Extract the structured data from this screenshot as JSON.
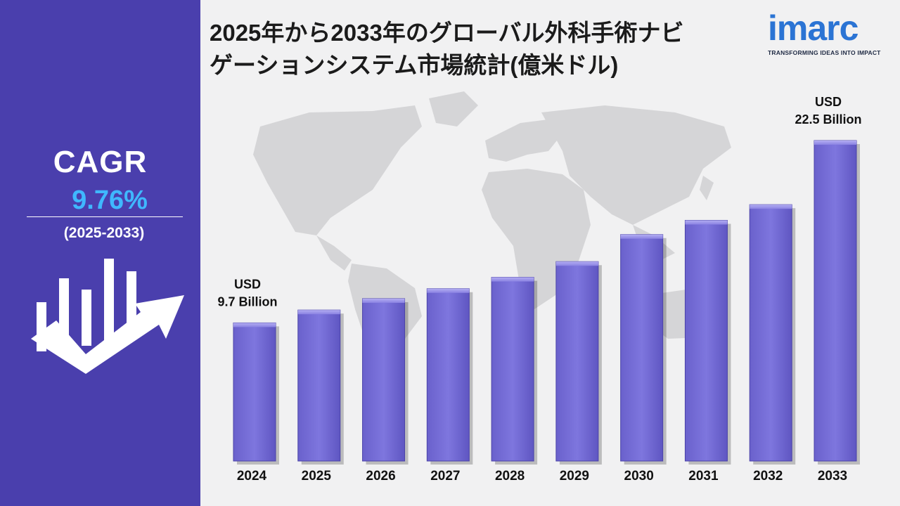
{
  "header": {
    "title_line1": "2025年から2033年のグローバル外科手術ナビ",
    "title_line2": "ゲーションシステム市場統計(億米ドル)"
  },
  "logo": {
    "word": "imarc",
    "tagline": "TRANSFORMING IDEAS INTO IMPACT",
    "color": "#2b74d4"
  },
  "sidebar": {
    "cagr_label": "CAGR",
    "cagr_value": "9.76%",
    "period": "(2025-2033)",
    "background": "#4a3fad",
    "accent": "#3fb8ff",
    "icon": "growth-chart-arrow-icon"
  },
  "chart_data": {
    "type": "bar",
    "categories": [
      "2024",
      "2025",
      "2026",
      "2027",
      "2028",
      "2029",
      "2030",
      "2031",
      "2032",
      "2033"
    ],
    "values": [
      9.7,
      10.6,
      11.4,
      12.1,
      12.9,
      14.0,
      15.9,
      16.9,
      18.0,
      22.5
    ],
    "ylim": [
      0,
      25
    ],
    "grid": false,
    "bar_color": "#7b72d9",
    "annotations": [
      {
        "category": "2024",
        "line1": "USD",
        "line2": "9.7 Billion"
      },
      {
        "category": "2033",
        "line1": "USD",
        "line2": "22.5 Billion"
      }
    ]
  }
}
